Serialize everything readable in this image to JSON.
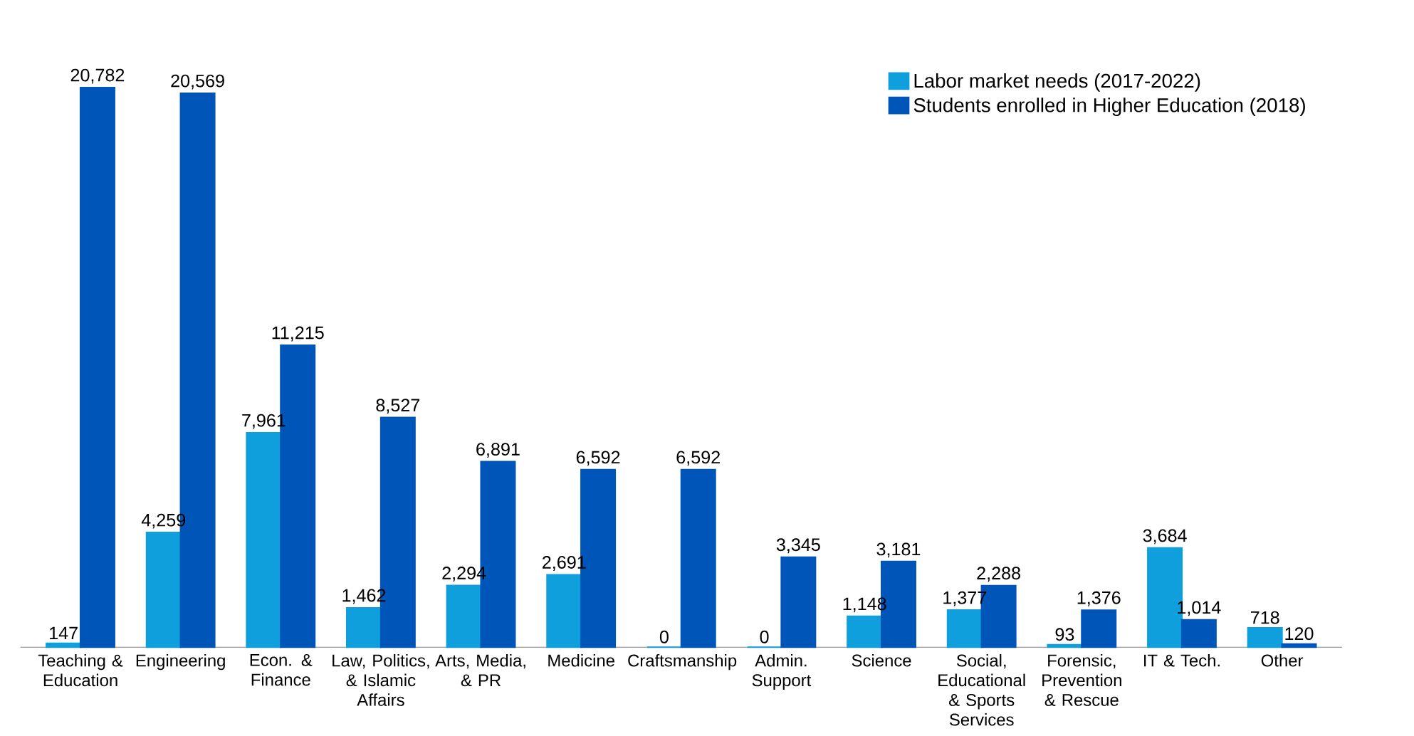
{
  "chart_data": {
    "type": "bar",
    "categories": [
      "Teaching & Education",
      "Engineering",
      "Econ. & Finance",
      "Law, Politics, & Islamic Affairs",
      "Arts, Media, & PR",
      "Medicine",
      "Craftsmanship",
      "Admin. Support",
      "Science",
      "Social, Educational & Sports Services",
      "Forensic, Prevention & Rescue",
      "IT & Tech.",
      "Other"
    ],
    "series": [
      {
        "name": "Labor market needs (2017-2022)",
        "color": "#0e9fdc",
        "values": [
          147,
          4259,
          7961,
          1462,
          2294,
          2691,
          0,
          0,
          1148,
          1377,
          93,
          3684,
          718
        ],
        "value_labels": [
          "147",
          "4,259",
          "7,961",
          "1,462",
          "2,294",
          "2,691",
          "0",
          "0",
          "1,148",
          "1,377",
          "93",
          "3,684",
          "718"
        ]
      },
      {
        "name": "Students enrolled in Higher Education (2018)",
        "color": "#0055b8",
        "values": [
          20782,
          20569,
          11215,
          8527,
          6891,
          6592,
          6592,
          3345,
          3181,
          2288,
          1376,
          1014,
          120
        ],
        "value_labels": [
          "20,782",
          "20,569",
          "11,215",
          "8,527",
          "6,891",
          "6,592",
          "6,592",
          "3,345",
          "3,181",
          "2,288",
          "1,376",
          "1,014",
          "120"
        ]
      }
    ],
    "legend": "top right"
  }
}
